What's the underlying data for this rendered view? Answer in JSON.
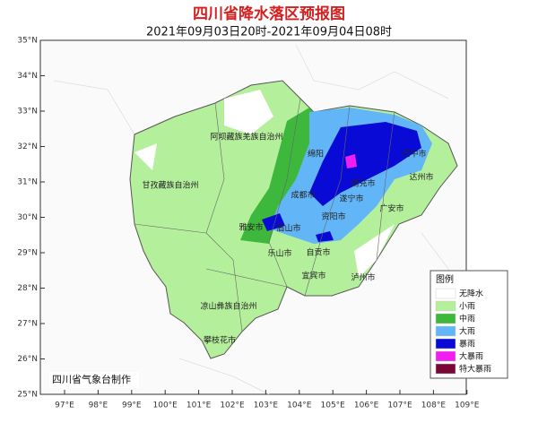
{
  "header": {
    "title": "四川省降水落区预报图",
    "subtitle": "2021年09月03日20时-2021年09月04日08时"
  },
  "map": {
    "lat_ticks": [
      "35°N",
      "34°N",
      "33°N",
      "32°N",
      "31°N",
      "30°N",
      "29°N",
      "28°N",
      "27°N",
      "26°N",
      "25°N"
    ],
    "lon_ticks": [
      "97°E",
      "98°E",
      "99°E",
      "100°E",
      "101°E",
      "102°E",
      "103°E",
      "104°E",
      "105°E",
      "106°E",
      "107°E",
      "108°E",
      "109°E"
    ],
    "regions": [
      "阿坝藏族羌族自治州",
      "甘孜藏族自治州",
      "凉山彝族自治州",
      "攀枝花市",
      "绵阳",
      "巴中市",
      "达州市",
      "南充市",
      "遂宁市",
      "广安市",
      "成都市",
      "资阳市",
      "雅安市",
      "眉山市",
      "乐山市",
      "自贡市",
      "宜宾市",
      "泸州市"
    ],
    "credit": "四川省气象台制作"
  },
  "legend": {
    "title": "图例",
    "items": [
      {
        "label": "无降水",
        "color": "#ffffff"
      },
      {
        "label": "小雨",
        "color": "#b4ef9c"
      },
      {
        "label": "中雨",
        "color": "#3db83d"
      },
      {
        "label": "大雨",
        "color": "#62b6f7"
      },
      {
        "label": "暴雨",
        "color": "#0a0ad6"
      },
      {
        "label": "大暴雨",
        "color": "#f01ef0"
      },
      {
        "label": "特大暴雨",
        "color": "#7a0636"
      }
    ]
  }
}
